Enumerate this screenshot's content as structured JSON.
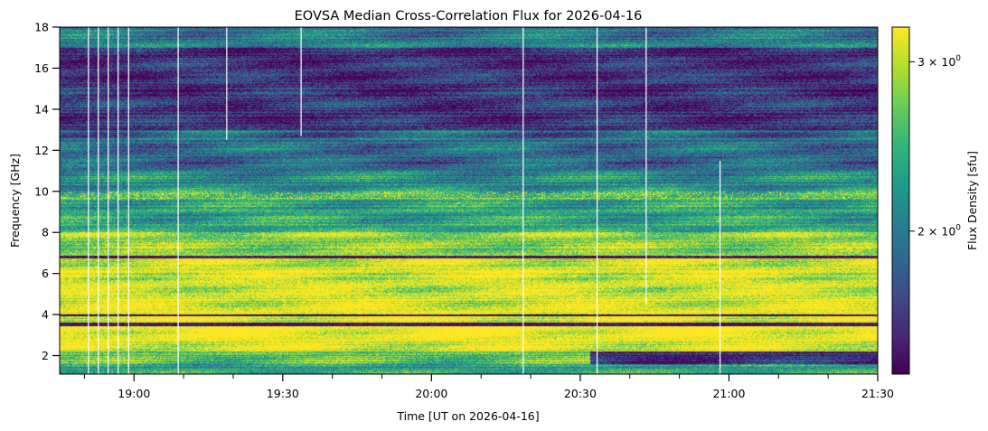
{
  "chart_data": {
    "type": "heatmap",
    "title": "EOVSA Median Cross-Correlation Flux for 2026-04-16",
    "xlabel": "Time [UT on 2026-04-16]",
    "ylabel": "Frequency [GHz]",
    "colorbar_label": "Flux Density [sfu]",
    "colormap": "viridis",
    "colorbar_scale": "log",
    "clim": [
      1.42,
      3.26
    ],
    "colorbar_ticks": [
      {
        "value": 3,
        "label": "3 × 10",
        "exp": "0"
      },
      {
        "value": 2,
        "label": "2 × 10",
        "exp": "0"
      }
    ],
    "xlim_minutes_utc": [
      1125,
      1290
    ],
    "ylim": [
      1.1,
      18
    ],
    "x_major_ticks": [
      {
        "min": 1140,
        "label": "19:00"
      },
      {
        "min": 1170,
        "label": "19:30"
      },
      {
        "min": 1200,
        "label": "20:00"
      },
      {
        "min": 1230,
        "label": "20:30"
      },
      {
        "min": 1260,
        "label": "21:00"
      },
      {
        "min": 1290,
        "label": "21:30"
      }
    ],
    "x_minor_ticks_min": [
      1130,
      1150,
      1160,
      1180,
      1190,
      1210,
      1220,
      1240,
      1250,
      1270,
      1280
    ],
    "y_ticks": [
      2,
      4,
      6,
      8,
      10,
      12,
      14,
      16,
      18
    ],
    "frequency_bands": [
      {
        "f": [
          1.1,
          1.6
        ],
        "flux": 2.3
      },
      {
        "f": [
          1.6,
          2.2
        ],
        "flux": 2.6
      },
      {
        "f": [
          2.2,
          3.45
        ],
        "flux": 3.3
      },
      {
        "f": [
          3.45,
          3.6
        ],
        "flux": 1.45
      },
      {
        "f": [
          3.6,
          3.9
        ],
        "flux": 3.3
      },
      {
        "f": [
          3.9,
          4.0
        ],
        "flux": 1.45
      },
      {
        "f": [
          4.0,
          6.75
        ],
        "flux": 3.2
      },
      {
        "f": [
          6.75,
          6.85
        ],
        "flux": 1.5
      },
      {
        "f": [
          6.85,
          8.0
        ],
        "flux": 2.8
      },
      {
        "f": [
          8.0,
          9.6
        ],
        "flux": 2.3
      },
      {
        "f": [
          9.6,
          10.0
        ],
        "flux": 2.6
      },
      {
        "f": [
          10.0,
          11.0
        ],
        "flux": 2.2
      },
      {
        "f": [
          11.0,
          13.0
        ],
        "flux": 1.9
      },
      {
        "f": [
          13.0,
          17.0
        ],
        "flux": 1.6
      },
      {
        "f": [
          17.0,
          18.0
        ],
        "flux": 2.0
      }
    ],
    "data_gaps": [
      {
        "t": 1130.8,
        "f": [
          1.1,
          18
        ]
      },
      {
        "t": 1132.8,
        "f": [
          1.1,
          18
        ]
      },
      {
        "t": 1134.8,
        "f": [
          1.1,
          18
        ]
      },
      {
        "t": 1136.8,
        "f": [
          1.1,
          18
        ]
      },
      {
        "t": 1138.9,
        "f": [
          1.1,
          18
        ]
      },
      {
        "t": 1148.9,
        "f": [
          1.1,
          18
        ]
      },
      {
        "t": 1158.7,
        "f": [
          12.5,
          18
        ]
      },
      {
        "t": 1173.7,
        "f": [
          12.7,
          18
        ]
      },
      {
        "t": 1218.5,
        "f": [
          1.1,
          18
        ]
      },
      {
        "t": 1233.4,
        "f": [
          1.1,
          18
        ]
      },
      {
        "t": 1243.3,
        "f": [
          4.5,
          18
        ]
      },
      {
        "t": 1258.2,
        "f": [
          1.1,
          11.5
        ]
      }
    ]
  }
}
